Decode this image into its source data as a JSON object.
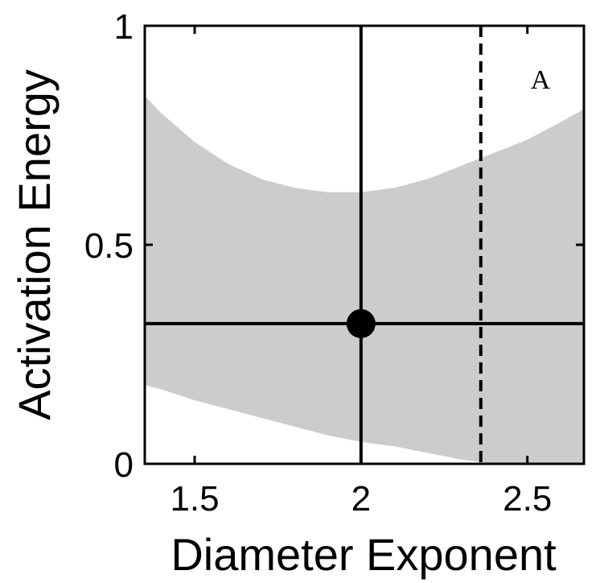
{
  "chart_data": {
    "type": "area",
    "panel_label": "A",
    "xlabel": "Diameter Exponent",
    "ylabel": "Activation Energy",
    "xlim": [
      1.35,
      2.67
    ],
    "ylim": [
      0,
      1
    ],
    "xticks": [
      1.5,
      2,
      2.5
    ],
    "xtick_labels": [
      "1.5",
      "2",
      "2.5"
    ],
    "yticks": [
      0,
      0.5,
      1
    ],
    "ytick_labels": [
      "0",
      "0.5",
      "1"
    ],
    "grid": false,
    "confidence_band": {
      "x": [
        1.35,
        1.4,
        1.5,
        1.6,
        1.7,
        1.8,
        1.9,
        2.0,
        2.1,
        2.2,
        2.3,
        2.4,
        2.5,
        2.6,
        2.67
      ],
      "upper": [
        0.84,
        0.8,
        0.735,
        0.685,
        0.65,
        0.63,
        0.62,
        0.62,
        0.63,
        0.65,
        0.68,
        0.71,
        0.74,
        0.78,
        0.81
      ],
      "lower": [
        0.18,
        0.17,
        0.145,
        0.125,
        0.105,
        0.085,
        0.065,
        0.05,
        0.04,
        0.025,
        0.01,
        0.0,
        0.0,
        0.0,
        0.0
      ],
      "color": "#cccccc"
    },
    "best_estimate": {
      "x": 2.0,
      "y": 0.32,
      "color": "#000000"
    },
    "reference_lines": [
      {
        "orientation": "vertical",
        "value": 2.0,
        "style": "solid"
      },
      {
        "orientation": "horizontal",
        "value": 0.32,
        "style": "solid"
      },
      {
        "orientation": "vertical",
        "value": 2.36,
        "style": "dashed"
      }
    ]
  }
}
